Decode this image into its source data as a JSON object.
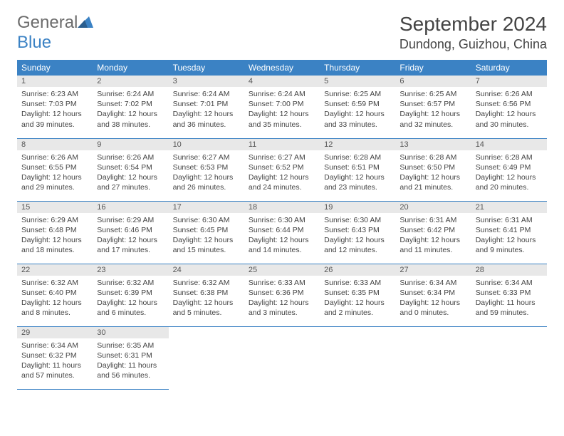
{
  "brand": {
    "part1": "General",
    "part2": "Blue"
  },
  "title": {
    "month": "September 2024",
    "location": "Dundong, Guizhou, China"
  },
  "style": {
    "header_bg": "#3b82c4",
    "header_fg": "#ffffff",
    "daynum_bg": "#e8e8e8",
    "border_color": "#3b82c4",
    "text_color": "#444444",
    "month_fontsize": 28,
    "location_fontsize": 18,
    "th_fontsize": 12,
    "cell_fontsize": 10.5
  },
  "weekdays": [
    "Sunday",
    "Monday",
    "Tuesday",
    "Wednesday",
    "Thursday",
    "Friday",
    "Saturday"
  ],
  "days": [
    {
      "n": 1,
      "sr": "6:23 AM",
      "ss": "7:03 PM",
      "dh": 12,
      "dm": 39
    },
    {
      "n": 2,
      "sr": "6:24 AM",
      "ss": "7:02 PM",
      "dh": 12,
      "dm": 38
    },
    {
      "n": 3,
      "sr": "6:24 AM",
      "ss": "7:01 PM",
      "dh": 12,
      "dm": 36
    },
    {
      "n": 4,
      "sr": "6:24 AM",
      "ss": "7:00 PM",
      "dh": 12,
      "dm": 35
    },
    {
      "n": 5,
      "sr": "6:25 AM",
      "ss": "6:59 PM",
      "dh": 12,
      "dm": 33
    },
    {
      "n": 6,
      "sr": "6:25 AM",
      "ss": "6:57 PM",
      "dh": 12,
      "dm": 32
    },
    {
      "n": 7,
      "sr": "6:26 AM",
      "ss": "6:56 PM",
      "dh": 12,
      "dm": 30
    },
    {
      "n": 8,
      "sr": "6:26 AM",
      "ss": "6:55 PM",
      "dh": 12,
      "dm": 29
    },
    {
      "n": 9,
      "sr": "6:26 AM",
      "ss": "6:54 PM",
      "dh": 12,
      "dm": 27
    },
    {
      "n": 10,
      "sr": "6:27 AM",
      "ss": "6:53 PM",
      "dh": 12,
      "dm": 26
    },
    {
      "n": 11,
      "sr": "6:27 AM",
      "ss": "6:52 PM",
      "dh": 12,
      "dm": 24
    },
    {
      "n": 12,
      "sr": "6:28 AM",
      "ss": "6:51 PM",
      "dh": 12,
      "dm": 23
    },
    {
      "n": 13,
      "sr": "6:28 AM",
      "ss": "6:50 PM",
      "dh": 12,
      "dm": 21
    },
    {
      "n": 14,
      "sr": "6:28 AM",
      "ss": "6:49 PM",
      "dh": 12,
      "dm": 20
    },
    {
      "n": 15,
      "sr": "6:29 AM",
      "ss": "6:48 PM",
      "dh": 12,
      "dm": 18
    },
    {
      "n": 16,
      "sr": "6:29 AM",
      "ss": "6:46 PM",
      "dh": 12,
      "dm": 17
    },
    {
      "n": 17,
      "sr": "6:30 AM",
      "ss": "6:45 PM",
      "dh": 12,
      "dm": 15
    },
    {
      "n": 18,
      "sr": "6:30 AM",
      "ss": "6:44 PM",
      "dh": 12,
      "dm": 14
    },
    {
      "n": 19,
      "sr": "6:30 AM",
      "ss": "6:43 PM",
      "dh": 12,
      "dm": 12
    },
    {
      "n": 20,
      "sr": "6:31 AM",
      "ss": "6:42 PM",
      "dh": 12,
      "dm": 11
    },
    {
      "n": 21,
      "sr": "6:31 AM",
      "ss": "6:41 PM",
      "dh": 12,
      "dm": 9
    },
    {
      "n": 22,
      "sr": "6:32 AM",
      "ss": "6:40 PM",
      "dh": 12,
      "dm": 8
    },
    {
      "n": 23,
      "sr": "6:32 AM",
      "ss": "6:39 PM",
      "dh": 12,
      "dm": 6
    },
    {
      "n": 24,
      "sr": "6:32 AM",
      "ss": "6:38 PM",
      "dh": 12,
      "dm": 5
    },
    {
      "n": 25,
      "sr": "6:33 AM",
      "ss": "6:36 PM",
      "dh": 12,
      "dm": 3
    },
    {
      "n": 26,
      "sr": "6:33 AM",
      "ss": "6:35 PM",
      "dh": 12,
      "dm": 2
    },
    {
      "n": 27,
      "sr": "6:34 AM",
      "ss": "6:34 PM",
      "dh": 12,
      "dm": 0
    },
    {
      "n": 28,
      "sr": "6:34 AM",
      "ss": "6:33 PM",
      "dh": 11,
      "dm": 59
    },
    {
      "n": 29,
      "sr": "6:34 AM",
      "ss": "6:32 PM",
      "dh": 11,
      "dm": 57
    },
    {
      "n": 30,
      "sr": "6:35 AM",
      "ss": "6:31 PM",
      "dh": 11,
      "dm": 56
    }
  ],
  "labels": {
    "sunrise": "Sunrise:",
    "sunset": "Sunset:",
    "daylight": "Daylight:",
    "hours": "hours",
    "and": "and",
    "minutes": "minutes."
  }
}
